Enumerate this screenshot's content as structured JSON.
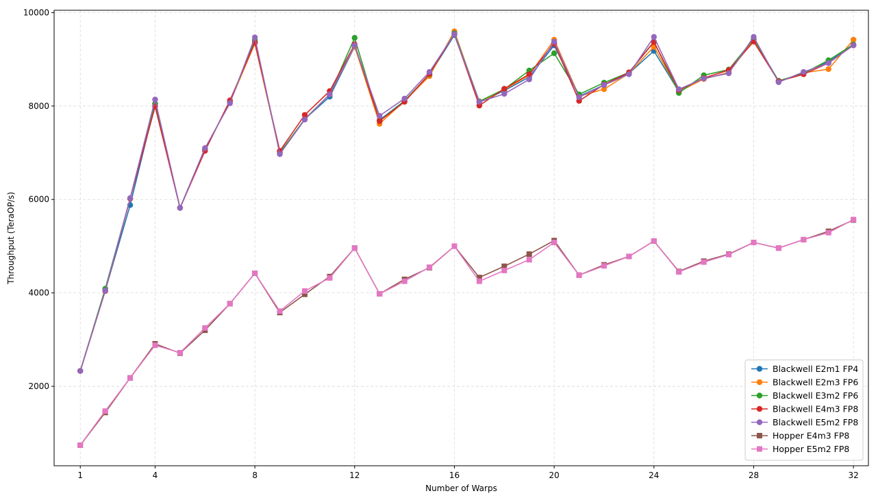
{
  "chart_data": {
    "type": "line",
    "title": "",
    "xlabel": "Number of Warps",
    "ylabel": "Throughput (TeraOP/s)",
    "xlim": [
      -0.05,
      32.6
    ],
    "ylim": [
      300,
      10050
    ],
    "xticks": [
      1,
      4,
      8,
      12,
      16,
      20,
      24,
      28,
      32
    ],
    "yticks": [
      2000,
      4000,
      6000,
      8000,
      10000
    ],
    "grid": true,
    "legend_position": "lower-right",
    "x": [
      1,
      2,
      3,
      4,
      5,
      6,
      7,
      8,
      9,
      10,
      11,
      12,
      13,
      14,
      15,
      16,
      17,
      18,
      19,
      20,
      21,
      22,
      23,
      24,
      25,
      26,
      27,
      28,
      29,
      30,
      31,
      32
    ],
    "series": [
      {
        "name": "Blackwell E2m1 FP4",
        "color": "#1f77b4",
        "marker": "circle",
        "values": [
          2330,
          4050,
          5880,
          8050,
          5820,
          7080,
          8080,
          9380,
          7000,
          7720,
          8200,
          9270,
          7700,
          8110,
          8670,
          9520,
          8080,
          8330,
          8620,
          9300,
          8210,
          8450,
          8700,
          9180,
          8310,
          8580,
          8720,
          9420,
          8520,
          8710,
          8950,
          9300
        ]
      },
      {
        "name": "Blackwell E2m3 FP6",
        "color": "#ff7f0e",
        "marker": "circle",
        "values": [
          2330,
          4050,
          6020,
          8050,
          5820,
          7080,
          8080,
          9340,
          7000,
          7720,
          8250,
          9280,
          7620,
          8110,
          8640,
          9600,
          8080,
          8350,
          8660,
          9420,
          8210,
          8360,
          8700,
          9270,
          8310,
          8580,
          8720,
          9420,
          8520,
          8710,
          8790,
          9420
        ]
      },
      {
        "name": "Blackwell E3m2 FP6",
        "color": "#2ca02c",
        "marker": "circle",
        "values": [
          2330,
          4090,
          6020,
          8050,
          5820,
          7080,
          8080,
          9410,
          7000,
          7720,
          8250,
          9460,
          7680,
          8110,
          8680,
          9560,
          8100,
          8360,
          8760,
          9130,
          8250,
          8500,
          8720,
          9380,
          8280,
          8660,
          8780,
          9440,
          8540,
          8700,
          8980,
          9320
        ]
      },
      {
        "name": "Blackwell E4m3 FP8",
        "color": "#d62728",
        "marker": "circle",
        "values": [
          2330,
          4040,
          6020,
          7990,
          5820,
          7040,
          8120,
          9360,
          7040,
          7810,
          8320,
          9320,
          7680,
          8090,
          8690,
          9540,
          8010,
          8370,
          8680,
          9340,
          8110,
          8460,
          8720,
          9370,
          8340,
          8600,
          8770,
          9380,
          8530,
          8680,
          8920,
          9300
        ]
      },
      {
        "name": "Blackwell E5m2 FP8",
        "color": "#9467bd",
        "marker": "circle",
        "values": [
          2330,
          4050,
          6030,
          8140,
          5820,
          7100,
          8060,
          9470,
          6970,
          7710,
          8250,
          9300,
          7790,
          8160,
          8730,
          9540,
          8090,
          8260,
          8570,
          9380,
          8190,
          8450,
          8680,
          9480,
          8360,
          8590,
          8700,
          9480,
          8510,
          8730,
          8920,
          9300
        ]
      },
      {
        "name": "Hopper E4m3 FP8",
        "color": "#8c564b",
        "marker": "square",
        "values": [
          740,
          1440,
          2180,
          2910,
          2710,
          3200,
          3770,
          4420,
          3580,
          3970,
          4350,
          4960,
          3980,
          4290,
          4540,
          5000,
          4330,
          4570,
          4830,
          5120,
          4380,
          4600,
          4780,
          5110,
          4460,
          4680,
          4830,
          5080,
          4960,
          5140,
          5320,
          5560
        ]
      },
      {
        "name": "Hopper E5m2 FP8",
        "color": "#e377c2",
        "marker": "square",
        "values": [
          740,
          1470,
          2180,
          2880,
          2720,
          3250,
          3770,
          4420,
          3610,
          4040,
          4320,
          4960,
          3980,
          4250,
          4550,
          5000,
          4250,
          4480,
          4710,
          5080,
          4380,
          4580,
          4780,
          5110,
          4450,
          4660,
          4820,
          5080,
          4960,
          5140,
          5290,
          5570
        ]
      }
    ]
  }
}
